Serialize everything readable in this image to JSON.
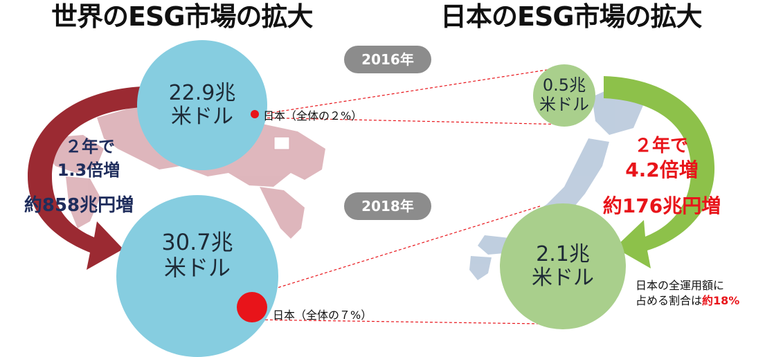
{
  "world": {
    "title": "世界のESG市場の拡大",
    "circle_2016": {
      "line1": "22.9兆",
      "line2": "米ドル"
    },
    "circle_2018": {
      "line1": "30.7兆",
      "line2": "米ドル"
    },
    "growth": {
      "line1": "２年で",
      "line2": "1.3倍増",
      "line3": "約858兆円増"
    },
    "japan_share_2016": "日本（全体の２%）",
    "japan_share_2018": "日本（全体の７%）"
  },
  "japan": {
    "title": "日本のESG市場の拡大",
    "circle_2016": {
      "line1": "0.5兆",
      "line2": "米ドル"
    },
    "circle_2018": {
      "line1": "2.1兆",
      "line2": "米ドル"
    },
    "growth": {
      "line1": "２年で",
      "line2": "4.2倍増",
      "line3": "約176兆円増"
    },
    "share_note": {
      "line1": "日本の全運用額に",
      "line2_prefix": "占める割合は",
      "line2_value": "約18%"
    }
  },
  "years": {
    "y2016": "2016年",
    "y2018": "2018年"
  },
  "colors": {
    "world_circle": "#86cde0",
    "japan_circle": "#a9cf8c",
    "world_arrow": "#9b2a32",
    "japan_arrow": "#8dc14a",
    "red_dot": "#e8141a",
    "navy_text": "#1f2d5c",
    "red_text": "#e8141a",
    "map_world": "#d9aab1",
    "map_japan": "#b9c9dc"
  }
}
